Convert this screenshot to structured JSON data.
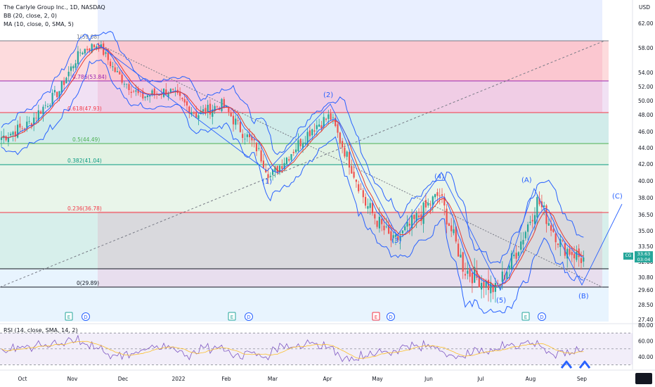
{
  "legend": {
    "title": "The Carlyle Group Inc., 1D, NASDAQ",
    "bb": "BB (20, close, 2, 0)",
    "ma": "MA (10, close, 0, SMA, 5)",
    "rsi": "RSI (14, close, SMA, 14, 2)"
  },
  "price_axis": {
    "currency": "USD",
    "ticks": [
      "62.00",
      "58.00",
      "54.00",
      "52.00",
      "50.00",
      "48.00",
      "46.00",
      "44.00",
      "42.00",
      "40.00",
      "38.00",
      "36.50",
      "35.00",
      "33.50",
      "32.00",
      "30.80",
      "29.60",
      "28.50",
      "27.40"
    ]
  },
  "rsi_axis": {
    "ticks": [
      "80.00",
      "60.00",
      "40.00"
    ]
  },
  "time_axis": {
    "labels": [
      "Oct",
      "Nov",
      "Dec",
      "2022",
      "Feb",
      "Mar",
      "Apr",
      "May",
      "Jun",
      "Jul",
      "Aug",
      "Sep"
    ]
  },
  "last_price": {
    "symbol": "CG",
    "value": "33.63",
    "sub": "03:04"
  },
  "fib_levels": [
    {
      "label": "1(59.08)"
    },
    {
      "label": "0.786(53.84)"
    },
    {
      "label": "0.618(47.93)"
    },
    {
      "label": "0.5(44.49)"
    },
    {
      "label": "0.382(41.04)"
    },
    {
      "label": "0.236(36.78)"
    },
    {
      "label": "0(29.89)"
    }
  ],
  "waves": [
    "(1)",
    "(2)",
    "(3)",
    "(4)",
    "(5)",
    "(A)",
    "(B)",
    "(C)"
  ],
  "events": [
    "E",
    "D",
    "E",
    "D",
    "E",
    "D",
    "E",
    "D"
  ],
  "colors": {
    "bb": "#2962ff",
    "ma": "#e53935",
    "candle_up": "#26a69a",
    "candle_down": "#ef5350",
    "rsi": "#7e57c2"
  },
  "chart_data": {
    "type": "candlestick",
    "title": "The Carlyle Group Inc., 1D, NASDAQ",
    "yunit": "USD",
    "months": [
      "Oct",
      "Nov",
      "Dec",
      "2022",
      "Feb",
      "Mar",
      "Apr",
      "May",
      "Jun",
      "Jul",
      "Aug",
      "Sep"
    ],
    "close_path": [
      [
        "Sep end",
        45.2
      ],
      [
        "Oct mid",
        46.8
      ],
      [
        "Nov start",
        51.5
      ],
      [
        "Nov 10",
        57.5
      ],
      [
        "Nov 22",
        58.6
      ],
      [
        "Dec 5",
        54.0
      ],
      [
        "Dec 20",
        50.5
      ],
      [
        "Jan 5",
        51.5
      ],
      [
        "Jan 20",
        48.0
      ],
      [
        "Feb 3",
        49.5
      ],
      [
        "Feb 15",
        46.5
      ],
      [
        "Mar 1",
        44.0
      ],
      [
        "Mar 15",
        40.5
      ],
      [
        "Apr 5",
        46.5
      ],
      [
        "Apr 15",
        47.8
      ],
      [
        "May 5",
        37.5
      ],
      [
        "May 20",
        33.8
      ],
      [
        "Jun 8",
        38.4
      ],
      [
        "Jun 25",
        31.5
      ],
      [
        "Jul 12",
        29.6
      ],
      [
        "Aug 1",
        33.0
      ],
      [
        "Aug 12",
        37.8
      ],
      [
        "Aug 25",
        33.5
      ],
      [
        "Sep 1",
        32.2
      ]
    ],
    "rsi_range": [
      25,
      80
    ]
  }
}
